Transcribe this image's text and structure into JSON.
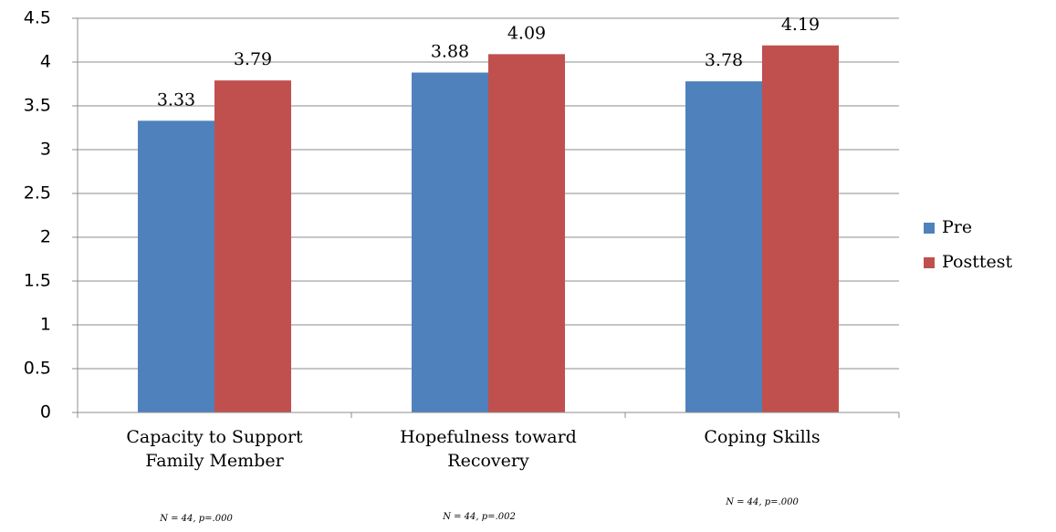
{
  "chart_data": {
    "type": "bar",
    "categories": [
      "Capacity to Support Family Member",
      "Hopefulness toward Recovery",
      "Coping Skills"
    ],
    "series": [
      {
        "name": "Pre",
        "color": "#4f81bd",
        "values": [
          3.33,
          3.88,
          3.78
        ]
      },
      {
        "name": "Posttest",
        "color": "#c0504d",
        "values": [
          3.79,
          4.09,
          4.19
        ]
      }
    ],
    "ylim": [
      0,
      4.5
    ],
    "yticks": [
      0,
      0.5,
      1,
      1.5,
      2,
      2.5,
      3,
      3.5,
      4,
      4.5
    ],
    "grid": true,
    "legend": "right",
    "annotations": [
      "N = 44, p=.000",
      "N = 44, p=.002",
      "N = 44, p=.000"
    ]
  }
}
